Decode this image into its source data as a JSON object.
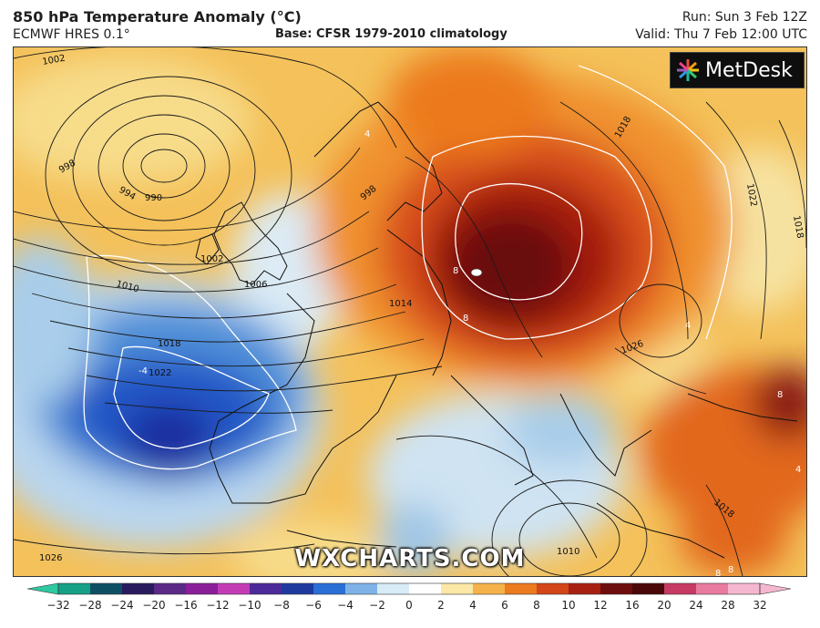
{
  "header": {
    "title": "850 hPa Temperature Anomaly (°C)",
    "model": "ECMWF HRES 0.1°",
    "base": "Base: CFSR 1979-2010 climatology",
    "run": "Run: Sun 3 Feb 12Z",
    "valid": "Valid: Thu 7 Feb 12:00 UTC"
  },
  "logo": {
    "name": "MetDesk",
    "icon": "metdesk-burst-icon"
  },
  "watermark": "WXCHARTS.COM",
  "colorbar": {
    "ticks": [
      "−32",
      "−28",
      "−24",
      "−20",
      "−16",
      "−12",
      "−10",
      "−8",
      "−6",
      "−4",
      "−2",
      "0",
      "2",
      "4",
      "6",
      "8",
      "10",
      "12",
      "16",
      "20",
      "24",
      "28",
      "32"
    ],
    "colors": [
      "#2ec9a0",
      "#16a085",
      "#0f4f64",
      "#2a1a5e",
      "#5b2a86",
      "#8b1f9a",
      "#c43cb5",
      "#4c2a9a",
      "#1f3a9e",
      "#2a6fd6",
      "#7fb3e8",
      "#d7ecf7",
      "#ffffff",
      "#fbe7a6",
      "#f6b24a",
      "#ec7a1f",
      "#d2461a",
      "#a82012",
      "#6e0e0e",
      "#4a0808",
      "#c63a64",
      "#e97aa0",
      "#f5b7cf"
    ]
  },
  "isobar_labels": [
    {
      "text": "1002",
      "rot": -10
    },
    {
      "text": "998",
      "rot": -30
    },
    {
      "text": "994",
      "rot": 30
    },
    {
      "text": "990",
      "rot": 0
    },
    {
      "text": "1002",
      "rot": 0
    },
    {
      "text": "1006",
      "rot": 0
    },
    {
      "text": "1010",
      "rot": 15
    },
    {
      "text": "1018",
      "rot": 0
    },
    {
      "text": "1022",
      "rot": 0
    },
    {
      "text": "998",
      "rot": -40
    },
    {
      "text": "1014",
      "rot": 0
    },
    {
      "text": "1018",
      "rot": -60
    },
    {
      "text": "1022",
      "rot": 80
    },
    {
      "text": "1018",
      "rot": 80
    },
    {
      "text": "1026",
      "rot": -20
    },
    {
      "text": "1010",
      "rot": 0
    },
    {
      "text": "1018",
      "rot": 40
    },
    {
      "text": "1026",
      "rot": 0
    }
  ],
  "anomaly_labels": [
    {
      "text": "4"
    },
    {
      "text": "-4"
    },
    {
      "text": "8"
    },
    {
      "text": "8"
    },
    {
      "text": "4"
    },
    {
      "text": "8"
    },
    {
      "text": "4"
    },
    {
      "text": "8"
    },
    {
      "text": "8"
    }
  ]
}
